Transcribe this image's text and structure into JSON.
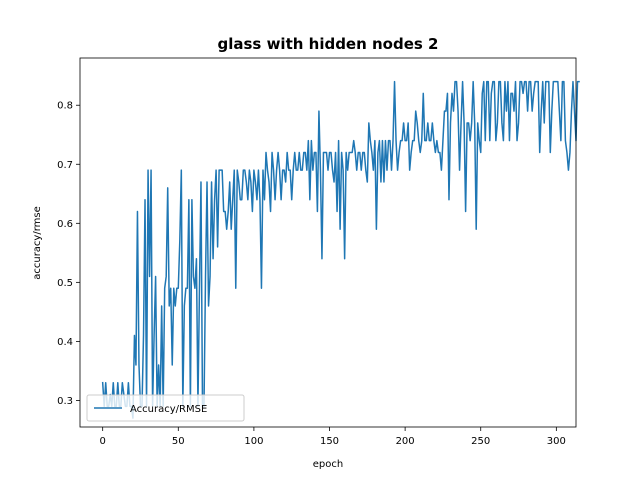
{
  "chart_data": {
    "type": "line",
    "title": "glass with hidden nodes 2",
    "xlabel": "epoch",
    "ylabel": "accuracy/rmse",
    "xlim": [
      -15,
      313
    ],
    "ylim": [
      0.255,
      0.88
    ],
    "xticks": [
      0,
      50,
      100,
      150,
      200,
      250,
      300
    ],
    "yticks": [
      0.3,
      0.4,
      0.5,
      0.6,
      0.7,
      0.8
    ],
    "ytick_labels": [
      "0.3",
      "0.4",
      "0.5",
      "0.6",
      "0.7",
      "0.8"
    ],
    "grid": false,
    "legend": "lower-left",
    "color": "#1f77b4",
    "series": [
      {
        "name": "Accuracy/RMSE",
        "x_start": 0,
        "x_step": 1,
        "values": [
          0.33,
          0.29,
          0.33,
          0.29,
          0.29,
          0.31,
          0.29,
          0.33,
          0.29,
          0.29,
          0.33,
          0.29,
          0.29,
          0.33,
          0.31,
          0.29,
          0.29,
          0.33,
          0.29,
          0.29,
          0.27,
          0.41,
          0.36,
          0.62,
          0.36,
          0.29,
          0.29,
          0.41,
          0.64,
          0.29,
          0.69,
          0.51,
          0.69,
          0.29,
          0.41,
          0.51,
          0.29,
          0.36,
          0.29,
          0.46,
          0.29,
          0.49,
          0.51,
          0.66,
          0.46,
          0.49,
          0.36,
          0.49,
          0.46,
          0.49,
          0.49,
          0.57,
          0.69,
          0.29,
          0.46,
          0.49,
          0.49,
          0.64,
          0.29,
          0.64,
          0.51,
          0.49,
          0.54,
          0.29,
          0.49,
          0.67,
          0.29,
          0.29,
          0.51,
          0.67,
          0.46,
          0.51,
          0.67,
          0.54,
          0.64,
          0.69,
          0.56,
          0.69,
          0.69,
          0.69,
          0.62,
          0.62,
          0.59,
          0.62,
          0.67,
          0.59,
          0.64,
          0.69,
          0.49,
          0.69,
          0.67,
          0.64,
          0.64,
          0.69,
          0.69,
          0.67,
          0.64,
          0.69,
          0.67,
          0.62,
          0.69,
          0.67,
          0.64,
          0.69,
          0.64,
          0.49,
          0.69,
          0.64,
          0.72,
          0.69,
          0.67,
          0.62,
          0.72,
          0.69,
          0.64,
          0.69,
          0.72,
          0.69,
          0.64,
          0.69,
          0.69,
          0.67,
          0.72,
          0.69,
          0.69,
          0.64,
          0.69,
          0.72,
          0.69,
          0.69,
          0.72,
          0.69,
          0.69,
          0.72,
          0.72,
          0.69,
          0.74,
          0.64,
          0.74,
          0.69,
          0.72,
          0.72,
          0.62,
          0.79,
          0.69,
          0.54,
          0.72,
          0.72,
          0.72,
          0.69,
          0.72,
          0.72,
          0.69,
          0.67,
          0.72,
          0.62,
          0.74,
          0.59,
          0.72,
          0.69,
          0.54,
          0.72,
          0.69,
          0.72,
          0.72,
          0.72,
          0.74,
          0.72,
          0.69,
          0.72,
          0.72,
          0.69,
          0.72,
          0.72,
          0.69,
          0.67,
          0.77,
          0.74,
          0.72,
          0.69,
          0.74,
          0.59,
          0.72,
          0.74,
          0.67,
          0.74,
          0.67,
          0.74,
          0.69,
          0.74,
          0.74,
          0.69,
          0.74,
          0.84,
          0.74,
          0.69,
          0.72,
          0.74,
          0.74,
          0.77,
          0.74,
          0.74,
          0.77,
          0.69,
          0.72,
          0.74,
          0.74,
          0.79,
          0.77,
          0.74,
          0.72,
          0.74,
          0.82,
          0.74,
          0.74,
          0.77,
          0.74,
          0.74,
          0.77,
          0.74,
          0.72,
          0.74,
          0.72,
          0.72,
          0.69,
          0.74,
          0.79,
          0.79,
          0.82,
          0.64,
          0.77,
          0.82,
          0.79,
          0.84,
          0.84,
          0.79,
          0.69,
          0.77,
          0.84,
          0.77,
          0.62,
          0.77,
          0.77,
          0.74,
          0.77,
          0.84,
          0.77,
          0.59,
          0.77,
          0.74,
          0.72,
          0.82,
          0.84,
          0.74,
          0.84,
          0.84,
          0.74,
          0.82,
          0.84,
          0.84,
          0.74,
          0.77,
          0.84,
          0.84,
          0.77,
          0.74,
          0.84,
          0.79,
          0.84,
          0.74,
          0.82,
          0.82,
          0.79,
          0.84,
          0.74,
          0.77,
          0.84,
          0.84,
          0.82,
          0.84,
          0.84,
          0.79,
          0.84,
          0.84,
          0.79,
          0.82,
          0.84,
          0.84,
          0.84,
          0.72,
          0.79,
          0.84,
          0.77,
          0.84,
          0.84,
          0.84,
          0.72,
          0.79,
          0.84,
          0.84,
          0.84,
          0.84,
          0.79,
          0.74,
          0.84,
          0.84,
          0.74,
          0.72,
          0.69,
          0.72,
          0.79,
          0.84,
          0.79,
          0.74,
          0.84,
          0.84
        ]
      }
    ]
  }
}
